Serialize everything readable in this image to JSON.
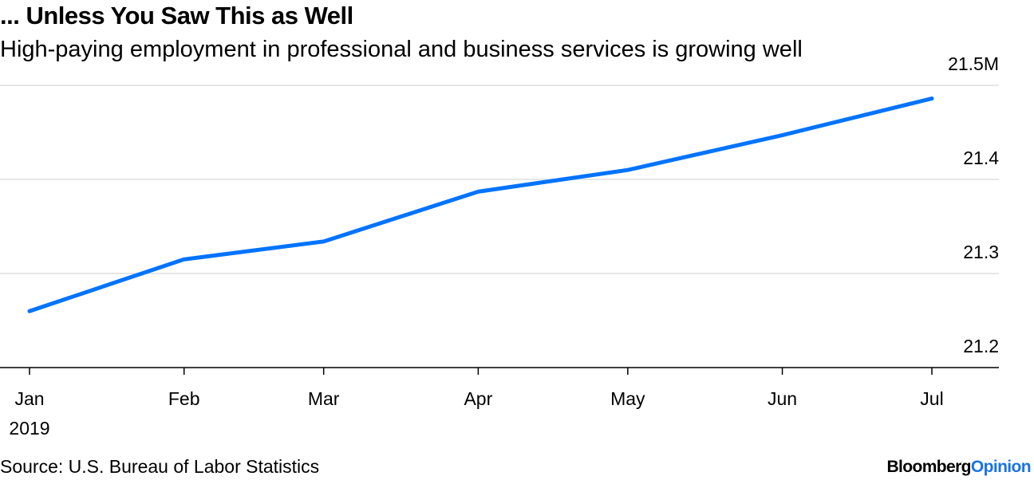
{
  "title": "... Unless You Saw This as Well",
  "subtitle": "High-paying employment in professional and business services is growing well",
  "source": "Source: U.S. Bureau of Labor Statistics",
  "logo": {
    "brand": "Bloomberg",
    "section": "Opinion"
  },
  "colors": {
    "line": "#0073ff",
    "grid": "#e6e6e6",
    "logo_accent": "#1a73e8"
  },
  "chart_data": {
    "type": "line",
    "title": "... Unless You Saw This as Well",
    "subtitle": "High-paying employment in professional and business services is growing well",
    "x": [
      "2019-01-01",
      "2019-02-01",
      "2019-03-01",
      "2019-04-01",
      "2019-05-01",
      "2019-06-01",
      "2019-07-01"
    ],
    "series": [
      {
        "values": [
          21.26,
          21.315,
          21.334,
          21.387,
          21.41,
          21.447,
          21.486
        ]
      }
    ],
    "x_ticks": [
      {
        "date": "2019-01-01",
        "label": "Jan",
        "sublabel": "2019"
      },
      {
        "date": "2019-02-01",
        "label": "Feb"
      },
      {
        "date": "2019-03-01",
        "label": "Mar"
      },
      {
        "date": "2019-04-01",
        "label": "Apr"
      },
      {
        "date": "2019-05-01",
        "label": "May"
      },
      {
        "date": "2019-06-01",
        "label": "Jun"
      },
      {
        "date": "2019-07-01",
        "label": "Jul"
      }
    ],
    "y_ticks": [
      {
        "value": 21.2,
        "label": "21.2"
      },
      {
        "value": 21.3,
        "label": "21.3"
      },
      {
        "value": 21.4,
        "label": "21.4"
      },
      {
        "value": 21.5,
        "label": "21.5M"
      }
    ],
    "ylim": [
      21.2,
      21.5
    ],
    "y_axis_side": "right",
    "grid": true,
    "xlabel": "",
    "ylabel": ""
  }
}
